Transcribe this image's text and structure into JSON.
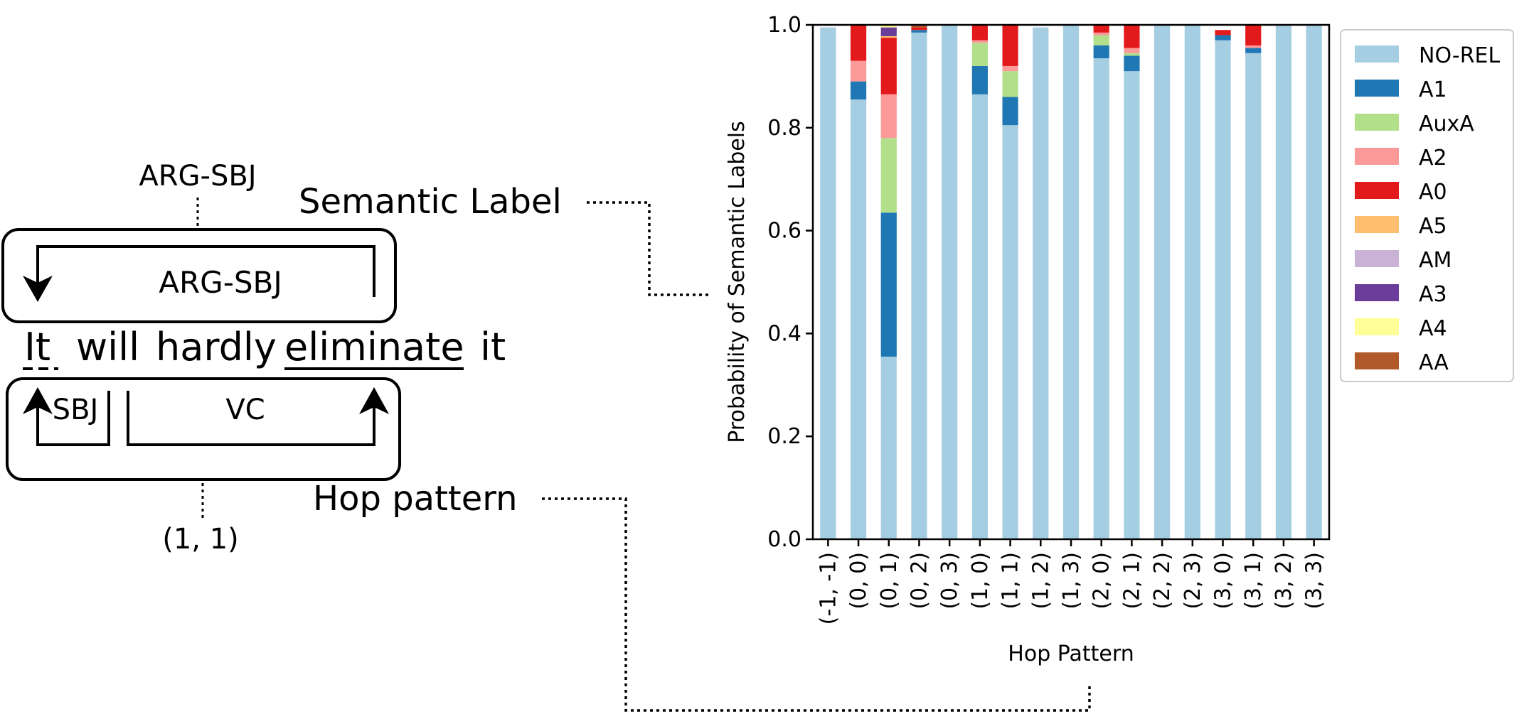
{
  "diagram": {
    "top_label": "ARG-SBJ",
    "semantic_label_caption": "Semantic Label",
    "arc_label_top": "ARG-SBJ",
    "sentence": {
      "w1": "It",
      "w2": "will",
      "w3": "hardly",
      "w4": "eliminate",
      "w5": "it"
    },
    "arc_label_sbj": "SBJ",
    "arc_label_vc": "VC",
    "hop_caption": "Hop pattern",
    "hop_value": "(1, 1)"
  },
  "chart_data": {
    "type": "bar",
    "stacked": true,
    "xlabel": "Hop Pattern",
    "ylabel": "Probability of Semantic Labels",
    "ylim": [
      0,
      1.0
    ],
    "yticks": [
      "0.0",
      "0.2",
      "0.4",
      "0.6",
      "0.8",
      "1.0"
    ],
    "grid": false,
    "legend_position": "right",
    "categories": [
      "(-1, -1)",
      "(0, 0)",
      "(0, 1)",
      "(0, 2)",
      "(0, 3)",
      "(1, 0)",
      "(1, 1)",
      "(1, 2)",
      "(1, 3)",
      "(2, 0)",
      "(2, 1)",
      "(2, 2)",
      "(2, 3)",
      "(3, 0)",
      "(3, 1)",
      "(3, 2)",
      "(3, 3)"
    ],
    "series": [
      {
        "name": "NO-REL",
        "color": "#a6cee3",
        "values": [
          0.995,
          0.855,
          0.355,
          0.985,
          1.0,
          0.865,
          0.805,
          0.995,
          1.0,
          0.935,
          0.91,
          1.0,
          1.0,
          0.97,
          0.945,
          1.0,
          1.0
        ]
      },
      {
        "name": "A1",
        "color": "#1f78b4",
        "values": [
          0.0,
          0.035,
          0.28,
          0.005,
          0.0,
          0.055,
          0.055,
          0.0,
          0.0,
          0.025,
          0.03,
          0.0,
          0.0,
          0.01,
          0.01,
          0.0,
          0.0
        ]
      },
      {
        "name": "AuxA",
        "color": "#b2df8a",
        "values": [
          0.0,
          0.0,
          0.145,
          0.0,
          0.0,
          0.045,
          0.05,
          0.0,
          0.0,
          0.02,
          0.005,
          0.0,
          0.0,
          0.0,
          0.0,
          0.0,
          0.0
        ]
      },
      {
        "name": "A2",
        "color": "#fb9a99",
        "values": [
          0.0,
          0.04,
          0.085,
          0.0,
          0.0,
          0.005,
          0.01,
          0.0,
          0.0,
          0.005,
          0.01,
          0.0,
          0.0,
          0.0,
          0.005,
          0.0,
          0.0
        ]
      },
      {
        "name": "A0",
        "color": "#e31a1c",
        "values": [
          0.0,
          0.07,
          0.11,
          0.005,
          0.0,
          0.03,
          0.08,
          0.0,
          0.0,
          0.015,
          0.045,
          0.0,
          0.0,
          0.01,
          0.04,
          0.0,
          0.0
        ]
      },
      {
        "name": "A5",
        "color": "#fdbf6f",
        "values": [
          0.0,
          0.0,
          0.003,
          0.0,
          0.0,
          0.0,
          0.0,
          0.0,
          0.0,
          0.0,
          0.0,
          0.0,
          0.0,
          0.0,
          0.0,
          0.0,
          0.0
        ]
      },
      {
        "name": "AM",
        "color": "#cab2d6",
        "values": [
          0.0,
          0.0,
          0.0,
          0.0,
          0.0,
          0.0,
          0.0,
          0.0,
          0.0,
          0.0,
          0.0,
          0.0,
          0.0,
          0.0,
          0.0,
          0.0,
          0.0
        ]
      },
      {
        "name": "A3",
        "color": "#6a3d9a",
        "values": [
          0.0,
          0.0,
          0.017,
          0.0,
          0.0,
          0.0,
          0.0,
          0.0,
          0.0,
          0.0,
          0.0,
          0.0,
          0.0,
          0.0,
          0.0,
          0.0,
          0.0
        ]
      },
      {
        "name": "A4",
        "color": "#ffff99",
        "values": [
          0.0,
          0.0,
          0.005,
          0.0,
          0.0,
          0.0,
          0.0,
          0.0,
          0.0,
          0.0,
          0.0,
          0.0,
          0.0,
          0.0,
          0.0,
          0.0,
          0.0
        ]
      },
      {
        "name": "AA",
        "color": "#b15928",
        "values": [
          0.0,
          0.0,
          0.0,
          0.005,
          0.0,
          0.0,
          0.0,
          0.0,
          0.0,
          0.0,
          0.0,
          0.0,
          0.0,
          0.0,
          0.0,
          0.0,
          0.0
        ]
      }
    ]
  }
}
